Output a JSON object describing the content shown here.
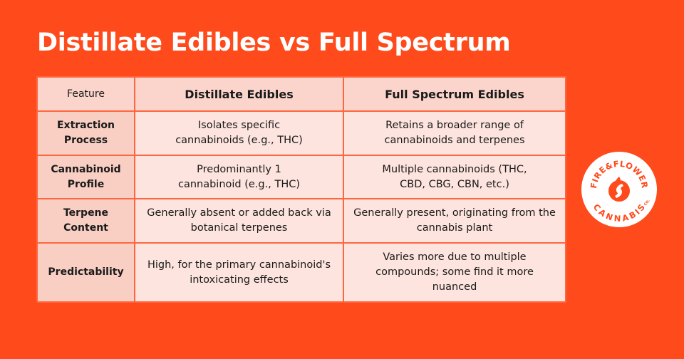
{
  "title": "Distillate Edibles vs Full Spectrum",
  "table": {
    "headers": [
      "Feature",
      "Distillate Edibles",
      "Full Spectrum Edibles"
    ],
    "rows": [
      {
        "label": "Extraction Process",
        "distillate": "Isolates specific cannabinoids (e.g., THC)",
        "full_spectrum": "Retains a broader range of cannabinoids and terpenes"
      },
      {
        "label": "Cannabinoid Profile",
        "distillate": "Predominantly 1 cannabinoid (e.g., THC)",
        "full_spectrum": "Multiple cannabinoids (THC, CBD, CBG, CBN, etc.)"
      },
      {
        "label": "Terpene Content",
        "distillate": "Generally absent or added back via botanical terpenes",
        "full_spectrum": "Generally present, originating from the cannabis plant"
      },
      {
        "label": "Predictability",
        "distillate": "High, for the primary cannabinoid's intoxicating effects",
        "full_spectrum": "Varies more due to multiple compounds; some find it more nuanced"
      }
    ]
  },
  "logo": {
    "top_text": "FIRE&FLOWER",
    "bottom_text": "CANNABIS",
    "suffix": "CO.",
    "colors": {
      "background": "#ffffff",
      "brand": "#ff4a1c"
    }
  },
  "colors": {
    "page_background": "#ff4a1c",
    "title_text": "#ffffff",
    "cell_background": "#fde4de",
    "header_background": "#fbd5cb"
  }
}
